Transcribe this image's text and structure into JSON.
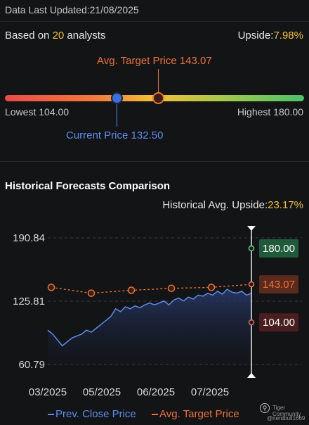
{
  "header": {
    "last_updated": "Data Last Updated:21/08/2025"
  },
  "analysts": {
    "prefix": "Based on ",
    "count": "20",
    "suffix": " analysts",
    "upside_label": "Upside:",
    "upside_value": "7.98%"
  },
  "gauge": {
    "avg_target_label": "Avg. Target Price 143.07",
    "lowest_label": "Lowest 104.00",
    "highest_label": "Highest 180.00",
    "current_label": "Current Price 132.50",
    "low": 104.0,
    "high": 180.0,
    "current": 132.5,
    "avg_target": 143.07
  },
  "historical": {
    "title": "Historical Forecasts Comparison",
    "upside_label": "Historical Avg. Upside:",
    "upside_value": "23.17%"
  },
  "chart_data": {
    "type": "line",
    "y_ticks": [
      "190.84",
      "125.81",
      "60.79"
    ],
    "ylim": [
      60.79,
      190.84
    ],
    "x_ticks": [
      "03/2025",
      "05/2025",
      "06/2025",
      "07/2025"
    ],
    "series": [
      {
        "name": "Prev. Close Price",
        "color": "#5b8def",
        "values": [
          96,
          92,
          86,
          80,
          84,
          88,
          90,
          92,
          96,
          94,
          98,
          102,
          106,
          110,
          118,
          115,
          120,
          118,
          121,
          119,
          122,
          124,
          122,
          124,
          126,
          122,
          127,
          129,
          126,
          130,
          128,
          132,
          131,
          134,
          132,
          136,
          133,
          138,
          135,
          134,
          136,
          132,
          134
        ]
      },
      {
        "name": "Avg. Target Price",
        "color": "#ee7436",
        "values": [
          140,
          134,
          137,
          139,
          140,
          143.07
        ]
      }
    ],
    "markers": [
      {
        "label": "180.00",
        "value": 180.0,
        "color": "#1f5a3a",
        "text_color": "#ffffff"
      },
      {
        "label": "143.07",
        "value": 143.07,
        "color": "#5a2a1c",
        "text_color": "#ee7436"
      },
      {
        "label": "104.00",
        "value": 104.0,
        "color": "#4a1e1e",
        "text_color": "#ffffff"
      }
    ],
    "legend": [
      {
        "label": "Prev. Close Price",
        "color": "#5b8def"
      },
      {
        "label": "Avg. Target Price",
        "color": "#ee7436"
      }
    ]
  },
  "watermark": {
    "brand": "Tiger Community",
    "user": "@nerdbull1669"
  }
}
